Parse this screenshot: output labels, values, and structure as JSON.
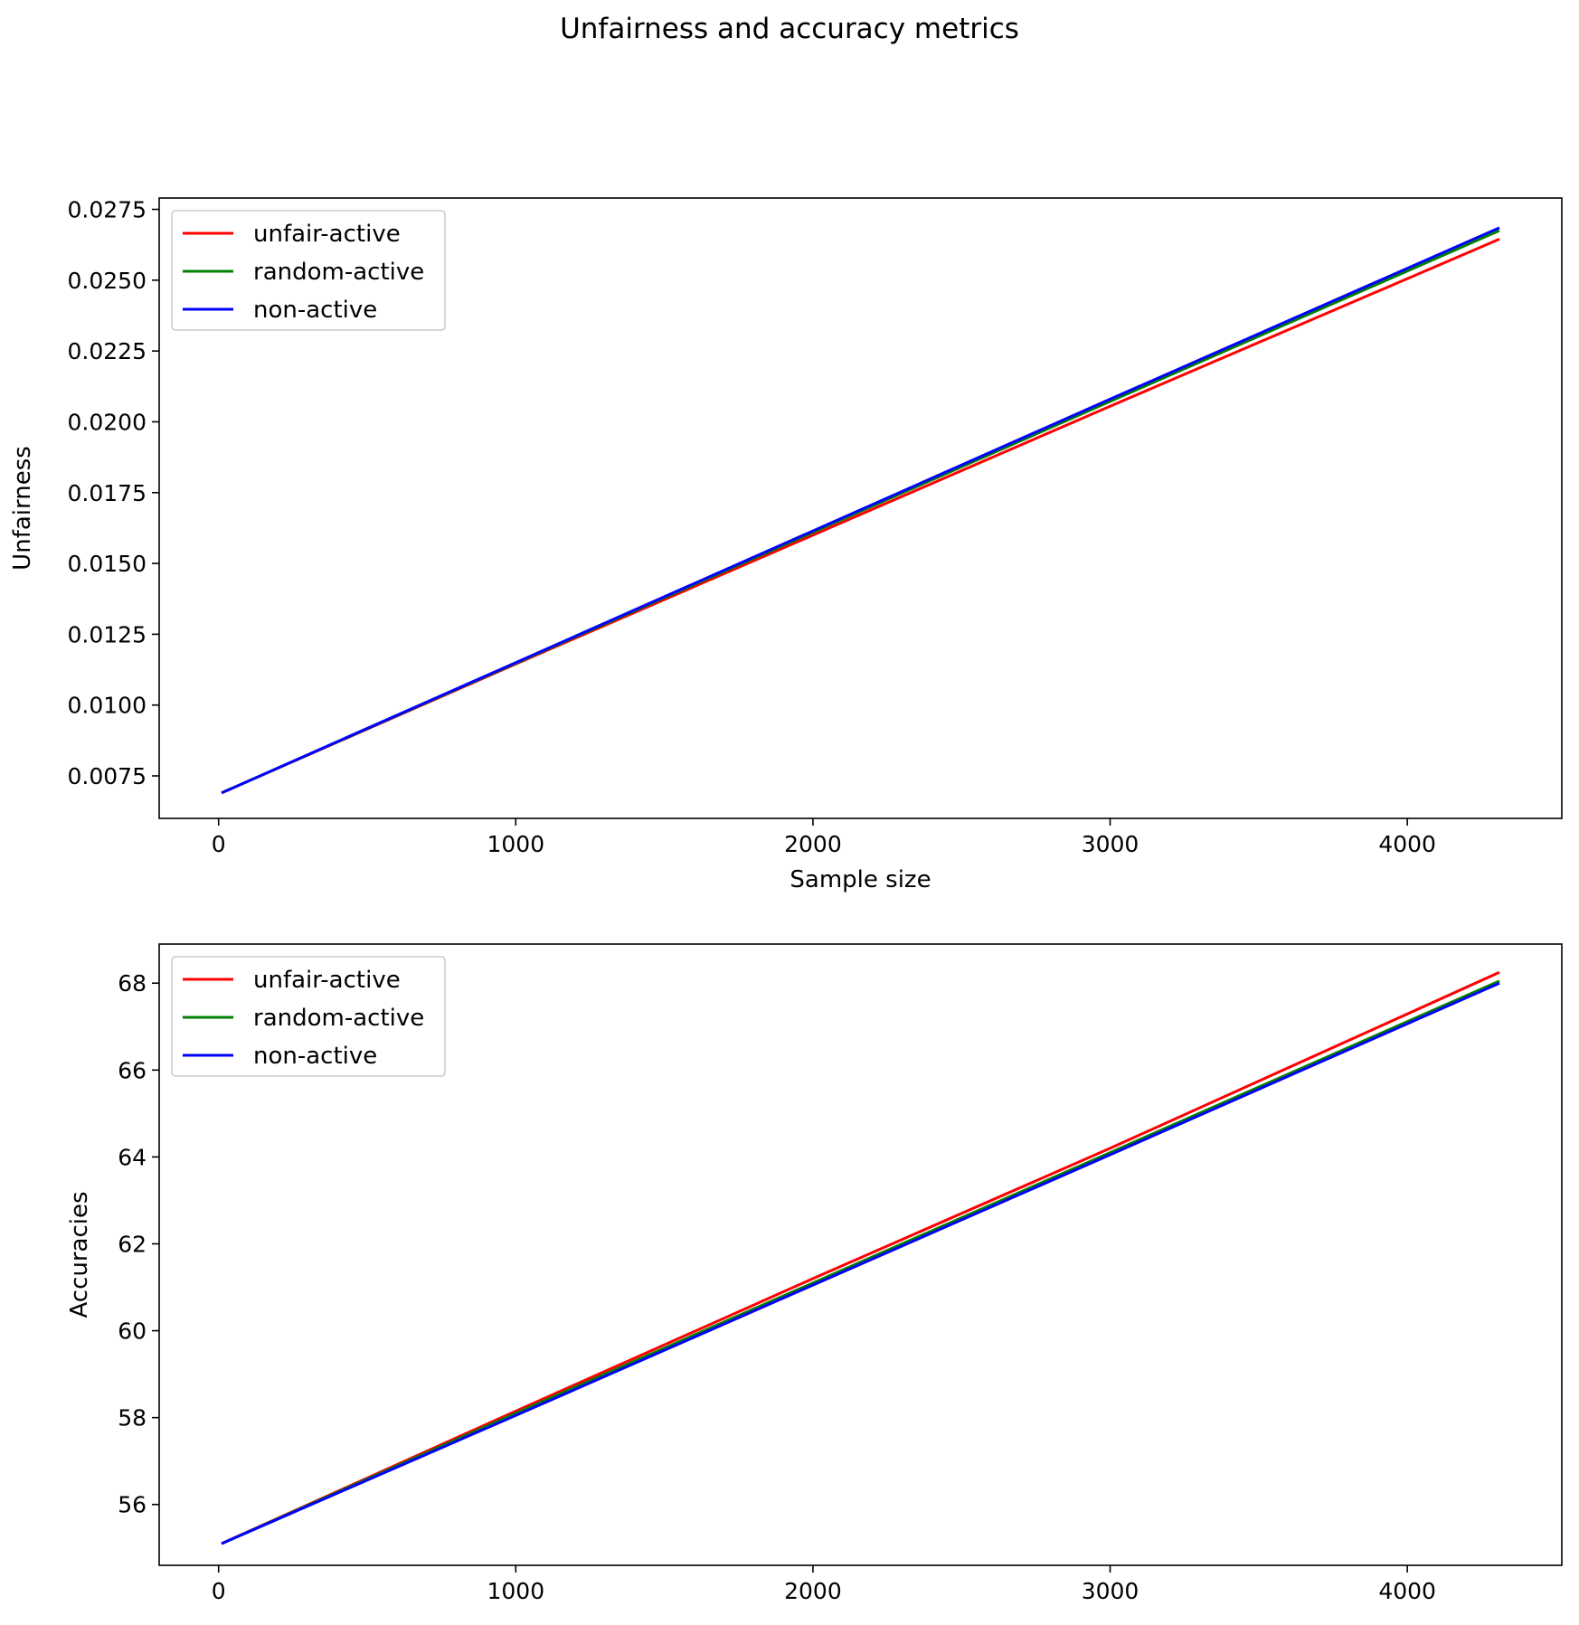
{
  "figure": {
    "title": "Unfairness and accuracy metrics"
  },
  "chart_data": [
    {
      "type": "line",
      "title": "",
      "xlabel": "Sample size",
      "ylabel": "Unfairness",
      "xlim": [
        -200,
        4520
      ],
      "ylim": [
        0.006,
        0.0279
      ],
      "xticks": [
        0,
        1000,
        2000,
        3000,
        4000
      ],
      "xtick_labels": [
        "0",
        "1000",
        "2000",
        "3000",
        "4000"
      ],
      "yticks": [
        0.0075,
        0.01,
        0.0125,
        0.015,
        0.0175,
        0.02,
        0.0225,
        0.025,
        0.0275
      ],
      "ytick_labels": [
        "0.0075",
        "0.0100",
        "0.0125",
        "0.0150",
        "0.0175",
        "0.0200",
        "0.0225",
        "0.0250",
        "0.0275"
      ],
      "grid": false,
      "legend": "upper-left",
      "series": [
        {
          "name": "unfair-active",
          "color": "#ff0000",
          "x": [
            10,
            1000,
            2000,
            3000,
            4310
          ],
          "y": [
            0.0069,
            0.01145,
            0.016,
            0.02055,
            0.02645
          ]
        },
        {
          "name": "random-active",
          "color": "#008000",
          "x": [
            10,
            1000,
            2000,
            3000,
            4310
          ],
          "y": [
            0.0069,
            0.01148,
            0.0161,
            0.02072,
            0.02675
          ]
        },
        {
          "name": "non-active",
          "color": "#0000ff",
          "x": [
            10,
            1000,
            2000,
            3000,
            4310
          ],
          "y": [
            0.0069,
            0.0115,
            0.01615,
            0.0208,
            0.02685
          ]
        }
      ]
    },
    {
      "type": "line",
      "title": "",
      "xlabel": "",
      "ylabel": "Accuracies",
      "xlim": [
        -200,
        4520
      ],
      "ylim": [
        54.6,
        68.9
      ],
      "xticks": [
        0,
        1000,
        2000,
        3000,
        4000
      ],
      "xtick_labels": [
        "0",
        "1000",
        "2000",
        "3000",
        "4000"
      ],
      "yticks": [
        56,
        58,
        60,
        62,
        64,
        66,
        68
      ],
      "ytick_labels": [
        "56",
        "58",
        "60",
        "62",
        "64",
        "66",
        "68"
      ],
      "grid": false,
      "legend": "upper-left",
      "series": [
        {
          "name": "unfair-active",
          "color": "#ff0000",
          "x": [
            10,
            1000,
            2000,
            3000,
            4310
          ],
          "y": [
            55.1,
            58.15,
            61.2,
            64.2,
            68.25
          ]
        },
        {
          "name": "random-active",
          "color": "#008000",
          "x": [
            10,
            1000,
            2000,
            3000,
            4310
          ],
          "y": [
            55.1,
            58.1,
            61.1,
            64.1,
            68.05
          ]
        },
        {
          "name": "non-active",
          "color": "#0000ff",
          "x": [
            10,
            1000,
            2000,
            3000,
            4310
          ],
          "y": [
            55.1,
            58.05,
            61.05,
            64.05,
            68.0
          ]
        }
      ]
    }
  ]
}
